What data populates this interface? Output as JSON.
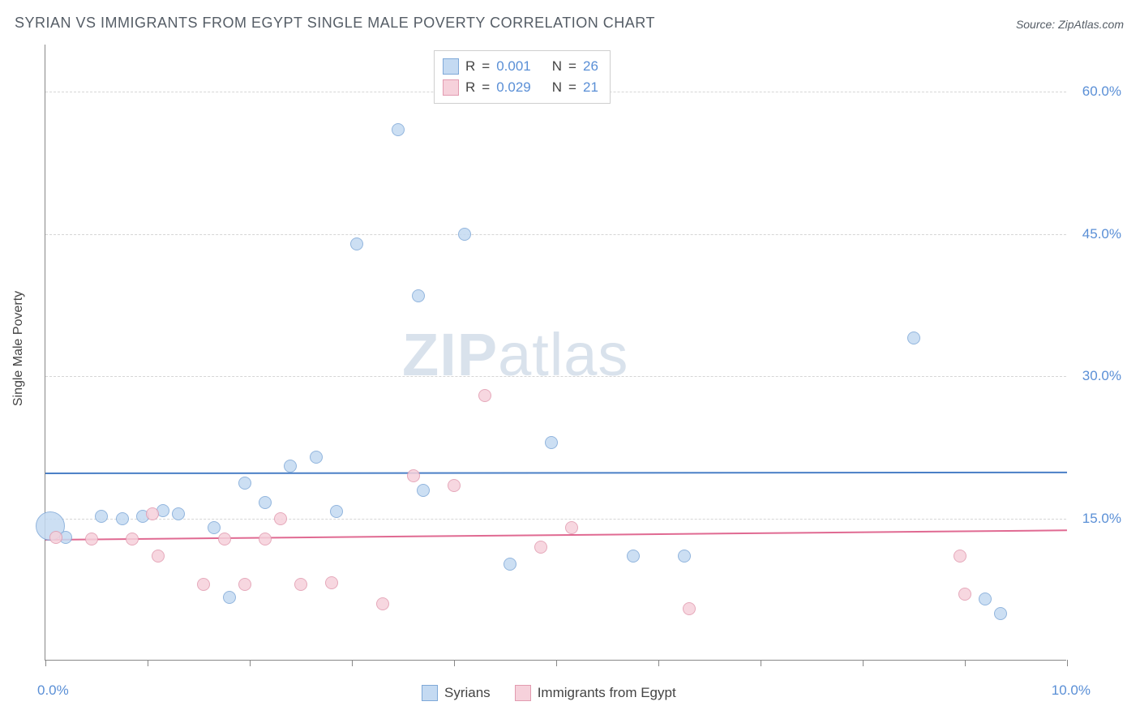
{
  "title": "SYRIAN VS IMMIGRANTS FROM EGYPT SINGLE MALE POVERTY CORRELATION CHART",
  "source_label": "Source: ZipAtlas.com",
  "y_axis_label": "Single Male Poverty",
  "watermark": {
    "bold": "ZIP",
    "rest": "atlas"
  },
  "chart": {
    "type": "scatter",
    "xlim": [
      0,
      10
    ],
    "ylim": [
      0,
      65
    ],
    "x_ticks": [
      0,
      1,
      2,
      3,
      4,
      5,
      6,
      7,
      8,
      9,
      10
    ],
    "x_start_label": "0.0%",
    "x_end_label": "10.0%",
    "y_gridlines": [
      15,
      30,
      45,
      60
    ],
    "y_labels": [
      "15.0%",
      "30.0%",
      "45.0%",
      "60.0%"
    ],
    "background_color": "#ffffff",
    "grid_color": "#d6d6d6",
    "axis_color": "#888888",
    "y_label_color": "#5a8fd6"
  },
  "series": [
    {
      "name": "Syrians",
      "fill": "#c4daf2",
      "stroke": "#7fa9d8",
      "trend_color": "#4a7fc6",
      "trend_y_start": 19.8,
      "trend_y_end": 19.9,
      "marker_radius": 8,
      "large_marker_radius": 18,
      "stats": {
        "R": "0.001",
        "N": "26"
      },
      "points": [
        {
          "x": 0.05,
          "y": 14.2,
          "r": 18
        },
        {
          "x": 0.2,
          "y": 13.0
        },
        {
          "x": 0.55,
          "y": 15.2
        },
        {
          "x": 0.75,
          "y": 15.0
        },
        {
          "x": 0.95,
          "y": 15.2
        },
        {
          "x": 1.15,
          "y": 15.8
        },
        {
          "x": 1.3,
          "y": 15.5
        },
        {
          "x": 1.65,
          "y": 14.0
        },
        {
          "x": 1.8,
          "y": 6.7
        },
        {
          "x": 1.95,
          "y": 18.7
        },
        {
          "x": 2.15,
          "y": 16.7
        },
        {
          "x": 2.4,
          "y": 20.5
        },
        {
          "x": 2.65,
          "y": 21.5
        },
        {
          "x": 2.85,
          "y": 15.7
        },
        {
          "x": 3.05,
          "y": 44.0
        },
        {
          "x": 3.45,
          "y": 56.0
        },
        {
          "x": 3.65,
          "y": 38.5
        },
        {
          "x": 3.7,
          "y": 18.0
        },
        {
          "x": 4.1,
          "y": 45.0
        },
        {
          "x": 4.55,
          "y": 10.2
        },
        {
          "x": 4.95,
          "y": 23.0
        },
        {
          "x": 5.75,
          "y": 11.0
        },
        {
          "x": 6.25,
          "y": 11.0
        },
        {
          "x": 8.5,
          "y": 34.0
        },
        {
          "x": 9.2,
          "y": 6.5
        },
        {
          "x": 9.35,
          "y": 5.0
        }
      ]
    },
    {
      "name": "Immigrants from Egypt",
      "fill": "#f6d1db",
      "stroke": "#e29bb0",
      "trend_color": "#e06a92",
      "trend_y_start": 12.8,
      "trend_y_end": 13.8,
      "marker_radius": 8,
      "stats": {
        "R": "0.029",
        "N": "21"
      },
      "points": [
        {
          "x": 0.1,
          "y": 13.0
        },
        {
          "x": 0.45,
          "y": 12.8
        },
        {
          "x": 0.85,
          "y": 12.8
        },
        {
          "x": 1.05,
          "y": 15.5
        },
        {
          "x": 1.1,
          "y": 11.0
        },
        {
          "x": 1.55,
          "y": 8.0
        },
        {
          "x": 1.75,
          "y": 12.8
        },
        {
          "x": 1.95,
          "y": 8.0
        },
        {
          "x": 2.15,
          "y": 12.8
        },
        {
          "x": 2.3,
          "y": 15.0
        },
        {
          "x": 2.5,
          "y": 8.0
        },
        {
          "x": 2.8,
          "y": 8.2
        },
        {
          "x": 3.3,
          "y": 6.0
        },
        {
          "x": 3.6,
          "y": 19.5
        },
        {
          "x": 4.0,
          "y": 18.5
        },
        {
          "x": 4.3,
          "y": 28.0
        },
        {
          "x": 4.85,
          "y": 12.0
        },
        {
          "x": 5.15,
          "y": 14.0
        },
        {
          "x": 6.3,
          "y": 5.5
        },
        {
          "x": 8.95,
          "y": 11.0
        },
        {
          "x": 9.0,
          "y": 7.0
        }
      ]
    }
  ],
  "stats_legend_labels": {
    "R": "R",
    "eq": "=",
    "N": "N"
  },
  "bottom_legend": {
    "items": [
      "Syrians",
      "Immigrants from Egypt"
    ]
  }
}
